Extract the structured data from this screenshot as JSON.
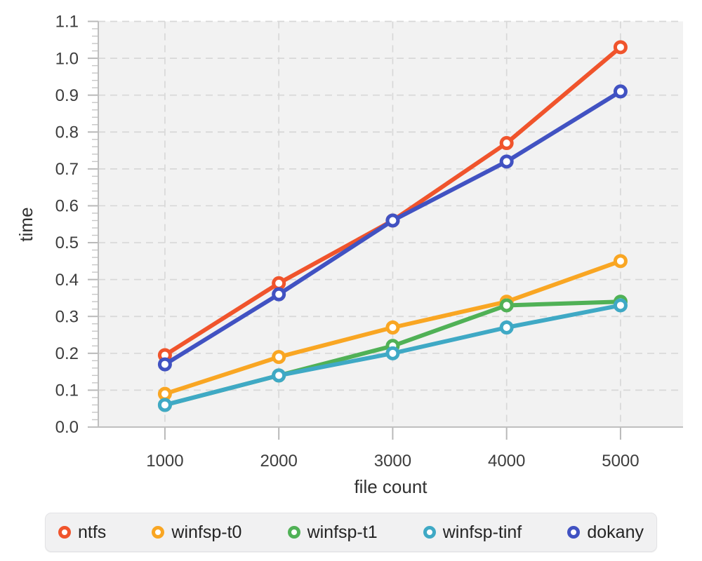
{
  "chart_data": {
    "type": "line",
    "title": "",
    "xlabel": "file count",
    "ylabel": "time",
    "x": [
      1000,
      2000,
      3000,
      4000,
      5000
    ],
    "series": [
      {
        "name": "ntfs",
        "color": "#F0542C",
        "values": [
          0.195,
          0.39,
          0.56,
          0.77,
          1.03
        ]
      },
      {
        "name": "winfsp-t0",
        "color": "#F9A623",
        "values": [
          0.09,
          0.19,
          0.27,
          0.34,
          0.45
        ]
      },
      {
        "name": "winfsp-t1",
        "color": "#50B156",
        "values": [
          0.06,
          0.14,
          0.22,
          0.33,
          0.34
        ]
      },
      {
        "name": "winfsp-tinf",
        "color": "#3FA9C5",
        "values": [
          0.06,
          0.14,
          0.2,
          0.27,
          0.33
        ]
      },
      {
        "name": "dokany",
        "color": "#4152C2",
        "values": [
          0.17,
          0.36,
          0.56,
          0.72,
          0.91
        ]
      }
    ],
    "xticks": [
      1000,
      2000,
      3000,
      4000,
      5000
    ],
    "ytick_labels": [
      "0.0",
      "0.1",
      "0.2",
      "0.3",
      "0.4",
      "0.5",
      "0.6",
      "0.7",
      "0.8",
      "0.9",
      "1.0",
      "1.1"
    ],
    "ytick_major_step": 0.1,
    "ytick_minor_step": 0.02,
    "xlim": [
      415,
      5549
    ],
    "ylim": [
      0,
      1.1
    ],
    "grid": true,
    "marker": "open-circle",
    "legend_position": "bottom",
    "styles": {
      "plot_bg": "#f2f2f2",
      "grid_color": "#d8d8d8",
      "axis_color": "#bfbfbf",
      "tick_color": "#b9b9b9",
      "minor_tick_color": "#c6c6c6",
      "tick_label_color": "#3d3d3d",
      "axis_title_color": "#303030",
      "legend_bg": "#f1f1f2",
      "legend_border": "#e3e3e6",
      "legend_text": "#242424"
    }
  }
}
